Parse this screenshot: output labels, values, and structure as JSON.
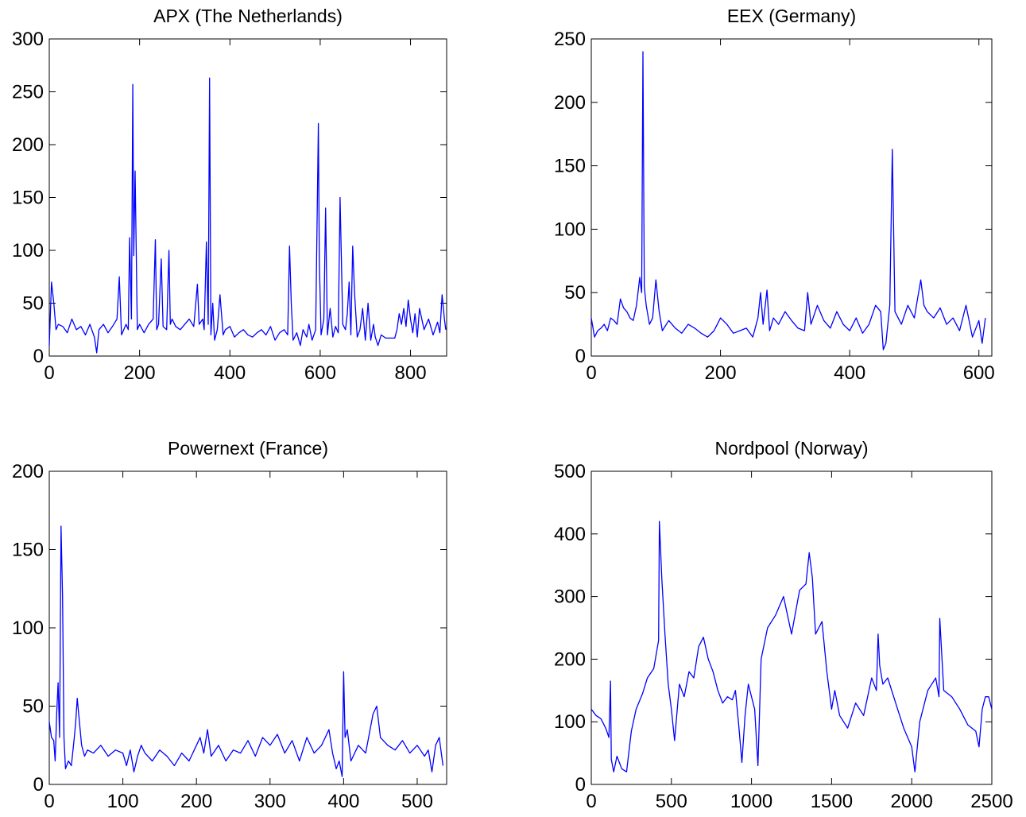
{
  "chart_data": [
    {
      "type": "line",
      "title": "APX (The Netherlands)",
      "xlabel": "",
      "ylabel": "",
      "xlim": [
        0,
        880
      ],
      "ylim": [
        0,
        300
      ],
      "xticks": [
        0,
        200,
        400,
        600,
        800
      ],
      "yticks": [
        0,
        50,
        100,
        150,
        200,
        250,
        300
      ],
      "grid": false,
      "color": "#0000ff",
      "x": [
        0,
        5,
        10,
        15,
        20,
        30,
        40,
        50,
        60,
        70,
        80,
        90,
        100,
        105,
        110,
        120,
        130,
        140,
        150,
        155,
        160,
        170,
        175,
        178,
        182,
        185,
        187,
        190,
        195,
        200,
        210,
        220,
        230,
        235,
        238,
        242,
        248,
        252,
        260,
        265,
        268,
        272,
        280,
        290,
        300,
        310,
        320,
        328,
        332,
        340,
        343,
        348,
        352,
        355,
        358,
        362,
        366,
        372,
        378,
        385,
        390,
        400,
        410,
        420,
        430,
        440,
        450,
        460,
        470,
        480,
        490,
        500,
        510,
        520,
        528,
        532,
        536,
        540,
        548,
        556,
        562,
        570,
        575,
        582,
        590,
        596,
        598,
        602,
        608,
        612,
        616,
        622,
        628,
        634,
        640,
        644,
        650,
        656,
        660,
        664,
        668,
        672,
        676,
        682,
        688,
        694,
        700,
        706,
        712,
        718,
        722,
        728,
        735,
        745,
        755,
        760,
        765,
        770,
        775,
        780,
        785,
        790,
        795,
        800,
        805,
        810,
        815,
        820,
        830,
        840,
        850,
        860,
        865,
        870,
        875,
        878
      ],
      "values": [
        10,
        70,
        50,
        25,
        30,
        28,
        22,
        35,
        25,
        28,
        20,
        30,
        18,
        3,
        25,
        30,
        22,
        28,
        35,
        75,
        20,
        30,
        25,
        112,
        35,
        257,
        95,
        175,
        25,
        30,
        22,
        30,
        35,
        110,
        25,
        30,
        92,
        28,
        25,
        100,
        30,
        35,
        28,
        25,
        30,
        35,
        28,
        68,
        30,
        35,
        25,
        108,
        30,
        263,
        20,
        50,
        15,
        25,
        58,
        20,
        25,
        28,
        18,
        22,
        25,
        20,
        18,
        22,
        25,
        20,
        28,
        15,
        22,
        25,
        20,
        104,
        50,
        15,
        22,
        10,
        25,
        18,
        30,
        15,
        25,
        220,
        90,
        20,
        35,
        140,
        20,
        45,
        18,
        28,
        22,
        150,
        30,
        25,
        40,
        70,
        20,
        104,
        60,
        18,
        25,
        45,
        15,
        50,
        15,
        30,
        18,
        10,
        20,
        17,
        17,
        17,
        17,
        25,
        40,
        30,
        45,
        28,
        53,
        35,
        22,
        40,
        18,
        45,
        25,
        35,
        20,
        32,
        22,
        58,
        35,
        25
      ],
      "points_note": ""
    },
    {
      "type": "line",
      "title": "EEX (Germany)",
      "xlabel": "",
      "ylabel": "",
      "xlim": [
        0,
        620
      ],
      "ylim": [
        0,
        250
      ],
      "xticks": [
        0,
        200,
        400,
        600
      ],
      "yticks": [
        0,
        50,
        100,
        150,
        200,
        250
      ],
      "grid": false,
      "color": "#0000ff",
      "x": [
        0,
        5,
        10,
        15,
        20,
        25,
        30,
        35,
        40,
        45,
        50,
        55,
        60,
        65,
        70,
        75,
        78,
        80,
        82,
        85,
        90,
        95,
        100,
        105,
        110,
        120,
        130,
        140,
        150,
        160,
        170,
        180,
        190,
        200,
        210,
        220,
        230,
        240,
        250,
        258,
        262,
        266,
        272,
        276,
        282,
        290,
        300,
        310,
        320,
        330,
        335,
        340,
        350,
        360,
        370,
        380,
        390,
        400,
        410,
        420,
        430,
        440,
        448,
        452,
        456,
        462,
        466,
        470,
        480,
        490,
        500,
        505,
        510,
        515,
        520,
        530,
        540,
        550,
        560,
        570,
        580,
        590,
        600,
        605,
        610
      ],
      "values": [
        30,
        15,
        20,
        22,
        25,
        20,
        30,
        28,
        25,
        45,
        38,
        35,
        30,
        28,
        40,
        62,
        50,
        240,
        55,
        40,
        25,
        30,
        60,
        35,
        20,
        28,
        22,
        18,
        25,
        22,
        18,
        15,
        20,
        30,
        25,
        18,
        20,
        22,
        15,
        30,
        50,
        25,
        52,
        20,
        30,
        25,
        35,
        28,
        22,
        20,
        50,
        25,
        40,
        28,
        22,
        35,
        25,
        20,
        30,
        18,
        25,
        40,
        35,
        5,
        10,
        40,
        163,
        35,
        25,
        40,
        30,
        45,
        60,
        40,
        35,
        30,
        38,
        25,
        30,
        20,
        40,
        15,
        28,
        10,
        30
      ],
      "points_note": ""
    },
    {
      "type": "line",
      "title": "Powernext (France)",
      "xlabel": "",
      "ylabel": "",
      "xlim": [
        0,
        540
      ],
      "ylim": [
        0,
        200
      ],
      "xticks": [
        0,
        100,
        200,
        300,
        400,
        500
      ],
      "yticks": [
        0,
        50,
        100,
        150,
        200
      ],
      "grid": false,
      "color": "#0000ff",
      "x": [
        0,
        3,
        6,
        8,
        10,
        12,
        14,
        16,
        18,
        20,
        22,
        26,
        30,
        34,
        36,
        38,
        40,
        44,
        48,
        52,
        60,
        70,
        80,
        90,
        100,
        105,
        110,
        115,
        120,
        125,
        130,
        140,
        150,
        160,
        170,
        180,
        190,
        200,
        205,
        210,
        215,
        220,
        230,
        240,
        250,
        260,
        270,
        280,
        290,
        300,
        310,
        320,
        330,
        340,
        350,
        360,
        370,
        380,
        385,
        390,
        394,
        398,
        400,
        402,
        405,
        410,
        420,
        430,
        440,
        445,
        450,
        460,
        470,
        480,
        490,
        500,
        510,
        515,
        520,
        525,
        530,
        535
      ],
      "values": [
        40,
        30,
        28,
        15,
        45,
        65,
        30,
        165,
        120,
        30,
        10,
        15,
        12,
        30,
        40,
        55,
        45,
        25,
        18,
        22,
        20,
        25,
        18,
        22,
        20,
        12,
        22,
        8,
        18,
        25,
        20,
        15,
        22,
        18,
        12,
        20,
        15,
        25,
        30,
        20,
        35,
        18,
        25,
        15,
        22,
        20,
        28,
        18,
        30,
        25,
        32,
        20,
        28,
        15,
        30,
        20,
        25,
        35,
        20,
        10,
        15,
        5,
        72,
        30,
        35,
        15,
        25,
        20,
        45,
        50,
        30,
        25,
        22,
        28,
        20,
        25,
        18,
        22,
        8,
        25,
        30,
        12
      ],
      "points_note": ""
    },
    {
      "type": "line",
      "title": "Nordpool (Norway)",
      "xlabel": "",
      "ylabel": "",
      "xlim": [
        0,
        2500
      ],
      "ylim": [
        0,
        500
      ],
      "xticks": [
        0,
        500,
        1000,
        1500,
        2000,
        2500
      ],
      "yticks": [
        0,
        100,
        200,
        300,
        400,
        500
      ],
      "grid": false,
      "color": "#0000ff",
      "x": [
        0,
        30,
        60,
        90,
        110,
        120,
        125,
        140,
        160,
        190,
        220,
        250,
        280,
        320,
        350,
        390,
        420,
        425,
        440,
        460,
        480,
        500,
        520,
        550,
        580,
        610,
        640,
        670,
        700,
        730,
        760,
        790,
        820,
        850,
        880,
        900,
        920,
        940,
        960,
        980,
        1000,
        1020,
        1040,
        1060,
        1100,
        1150,
        1200,
        1250,
        1300,
        1340,
        1360,
        1380,
        1400,
        1440,
        1470,
        1500,
        1520,
        1550,
        1600,
        1650,
        1700,
        1750,
        1780,
        1790,
        1800,
        1820,
        1850,
        1900,
        1950,
        2000,
        2020,
        2050,
        2100,
        2150,
        2170,
        2175,
        2200,
        2250,
        2300,
        2350,
        2400,
        2420,
        2440,
        2460,
        2480,
        2500
      ],
      "values": [
        120,
        110,
        105,
        90,
        75,
        165,
        40,
        20,
        45,
        25,
        20,
        85,
        120,
        145,
        170,
        185,
        230,
        420,
        330,
        240,
        160,
        120,
        70,
        160,
        140,
        180,
        170,
        220,
        235,
        200,
        180,
        150,
        130,
        140,
        135,
        150,
        95,
        35,
        110,
        160,
        140,
        120,
        30,
        200,
        250,
        270,
        300,
        240,
        310,
        320,
        370,
        330,
        240,
        260,
        180,
        120,
        150,
        110,
        90,
        130,
        110,
        170,
        150,
        240,
        190,
        160,
        170,
        130,
        90,
        60,
        20,
        100,
        150,
        170,
        140,
        265,
        150,
        140,
        120,
        95,
        85,
        60,
        120,
        140,
        140,
        120
      ],
      "points_note": ""
    }
  ]
}
